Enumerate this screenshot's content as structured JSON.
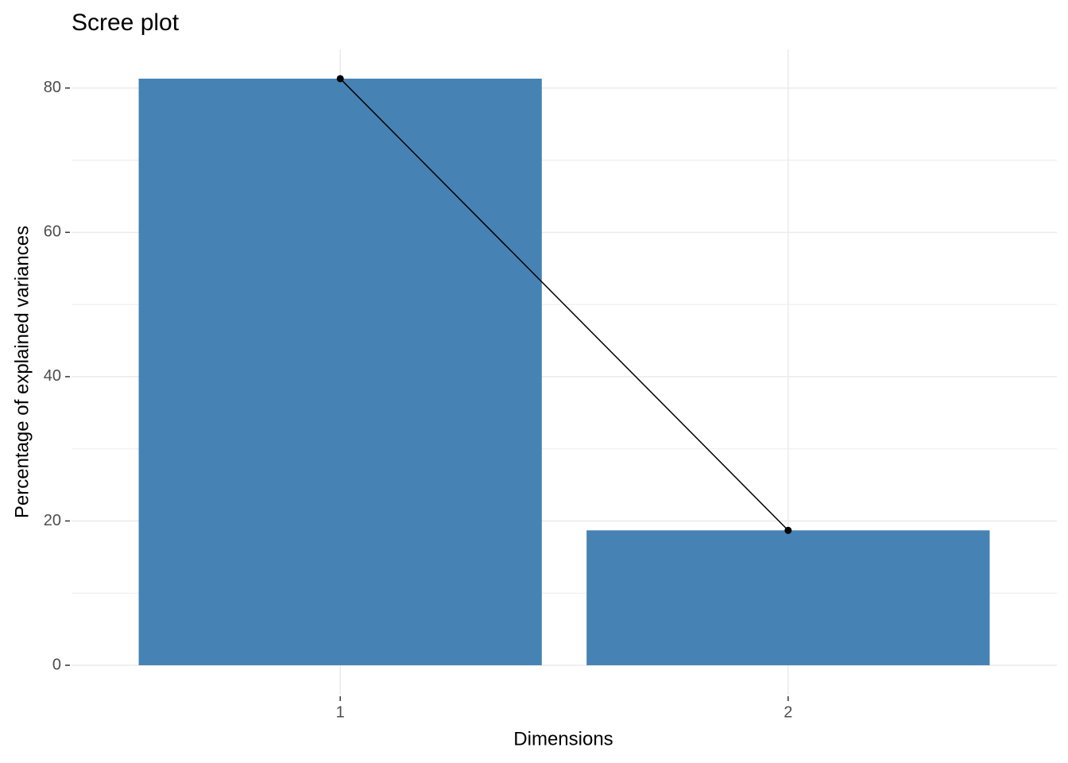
{
  "chart_data": {
    "type": "bar",
    "title": "Scree plot",
    "x_label": "Dimensions",
    "y_label": "Percentage of explained variances",
    "categories": [
      "1",
      "2"
    ],
    "values": [
      81.3,
      18.7
    ],
    "color": "#4682b4",
    "line_color": "#000000",
    "ylim": [
      -4.07,
      85.37
    ],
    "yticks": [
      0,
      20,
      40,
      60,
      80
    ],
    "yminor_ticks": [
      10,
      30,
      50,
      70
    ],
    "grid": true
  }
}
